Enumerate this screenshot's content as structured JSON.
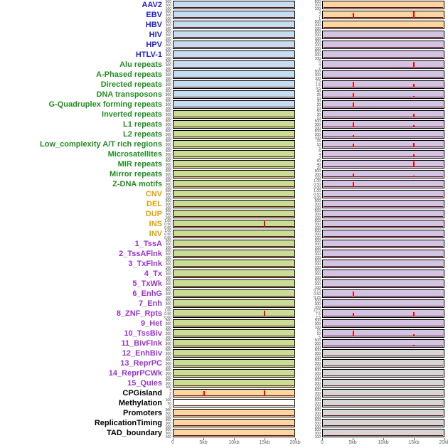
{
  "chart_data": {
    "type": "line",
    "description": "Two columns of per-feature genomic signal mini-tracks over a 0-20kb window; red vertical spikes mark signal peaks; flat dark baseline otherwise.",
    "columns": 2,
    "x_axis": {
      "ticks": [
        "0",
        "5kb",
        "10kb",
        "15kb",
        "20kb"
      ],
      "positions_kb": [
        0,
        5,
        10,
        15,
        20
      ],
      "domain_kb": [
        0,
        20
      ]
    },
    "default_yticks": [
      "500",
      "300",
      "100"
    ],
    "rows": [
      {
        "label": "AAV2",
        "group": "virus",
        "left": {
          "bg": "blue",
          "spikes": []
        },
        "right": {
          "bg": "orange",
          "spikes": []
        }
      },
      {
        "label": "EBV",
        "group": "virus",
        "left": {
          "bg": "blue",
          "spikes": []
        },
        "right": {
          "bg": "orange",
          "yticks": [
            "3",
            "2",
            "1"
          ],
          "spikes": [
            [
              5,
              0.7
            ],
            [
              15,
              0.9
            ]
          ]
        }
      },
      {
        "label": "HBV",
        "group": "virus",
        "left": {
          "bg": "blue",
          "spikes": []
        },
        "right": {
          "bg": "orange",
          "spikes": []
        }
      },
      {
        "label": "HIV",
        "group": "virus",
        "left": {
          "bg": "blue",
          "spikes": []
        },
        "right": {
          "bg": "purple",
          "spikes": []
        }
      },
      {
        "label": "HPV",
        "group": "virus",
        "left": {
          "bg": "blue",
          "spikes": []
        },
        "right": {
          "bg": "purple",
          "yticks": [
            "300",
            "200",
            "100"
          ],
          "spikes": []
        }
      },
      {
        "label": "HTLV-1",
        "group": "virus",
        "left": {
          "bg": "blue",
          "spikes": []
        },
        "right": {
          "bg": "purple",
          "spikes": []
        }
      },
      {
        "label": "Alu repeats",
        "group": "repeat",
        "left": {
          "bg": "blue",
          "spikes": []
        },
        "right": {
          "bg": "purple",
          "yticks": [
            "6",
            "4",
            "2"
          ],
          "spikes": [
            [
              15,
              0.8
            ]
          ]
        }
      },
      {
        "label": "A-Phased repeats",
        "group": "repeat",
        "left": {
          "bg": "blue",
          "spikes": []
        },
        "right": {
          "bg": "purple",
          "spikes": []
        }
      },
      {
        "label": "Directed repeats",
        "group": "repeat",
        "left": {
          "bg": "blue",
          "spikes": []
        },
        "right": {
          "bg": "purple",
          "yticks": [
            "2.5",
            "1.5",
            "0.5"
          ],
          "spikes": [
            [
              5,
              0.8
            ],
            [
              15,
              0.55
            ]
          ]
        }
      },
      {
        "label": "DNA transposons",
        "group": "repeat",
        "left": {
          "bg": "blue",
          "spikes": []
        },
        "right": {
          "bg": "purple",
          "yticks": [
            "40",
            "25",
            "10"
          ],
          "spikes": [
            [
              5,
              0.65
            ],
            [
              15,
              0.25
            ]
          ]
        }
      },
      {
        "label": "G-Quadruplex forming repeats",
        "group": "repeat",
        "left": {
          "bg": "blue",
          "spikes": []
        },
        "right": {
          "bg": "purple",
          "yticks": [
            "30",
            "20",
            "10"
          ],
          "spikes": [
            [
              5,
              0.7
            ]
          ]
        }
      },
      {
        "label": "Inverted repeats",
        "group": "repeat",
        "left": {
          "bg": "green",
          "spikes": []
        },
        "right": {
          "bg": "purple",
          "yticks": [
            "50",
            "30",
            "10"
          ],
          "spikes": [
            [
              15,
              0.5
            ]
          ]
        }
      },
      {
        "label": "L1 repeats",
        "group": "repeat",
        "left": {
          "bg": "green",
          "spikes": []
        },
        "right": {
          "bg": "purple",
          "spikes": [
            [
              5,
              0.75
            ],
            [
              15,
              0.3
            ]
          ]
        }
      },
      {
        "label": "L2 repeats",
        "group": "repeat",
        "left": {
          "bg": "green",
          "spikes": []
        },
        "right": {
          "bg": "purple",
          "spikes": [
            [
              5,
              0.35
            ]
          ]
        }
      },
      {
        "label": "Low_complexity A/T rich regions",
        "group": "repeat",
        "left": {
          "bg": "green",
          "spikes": []
        },
        "right": {
          "bg": "purple",
          "yticks": [
            "15",
            "10",
            "5"
          ],
          "spikes": [
            [
              5,
              0.5
            ],
            [
              15,
              0.65
            ]
          ]
        }
      },
      {
        "label": "Microsatellites",
        "group": "repeat",
        "left": {
          "bg": "green",
          "spikes": []
        },
        "right": {
          "bg": "purple",
          "yticks": [
            "6",
            "4",
            "2"
          ],
          "spikes": [
            [
              15,
              0.4
            ]
          ]
        }
      },
      {
        "label": "MIR repeats",
        "group": "repeat",
        "left": {
          "bg": "green",
          "spikes": []
        },
        "right": {
          "bg": "purple",
          "yticks": [
            "60",
            "40",
            "20"
          ],
          "spikes": [
            [
              15,
              0.85
            ]
          ]
        }
      },
      {
        "label": "Mirror repeats",
        "group": "repeat",
        "left": {
          "bg": "green",
          "spikes": []
        },
        "right": {
          "bg": "purple",
          "spikes": [
            [
              5,
              0.5
            ],
            [
              15,
              0.2
            ]
          ]
        }
      },
      {
        "label": "Z-DNA motifs",
        "group": "repeat",
        "left": {
          "bg": "green",
          "spikes": []
        },
        "right": {
          "bg": "purple",
          "yticks": [
            "1.00",
            "0.50",
            "0.00"
          ],
          "spikes": [
            [
              5,
              0.75
            ]
          ]
        }
      },
      {
        "label": "CNV",
        "group": "sv",
        "left": {
          "bg": "green",
          "spikes": []
        },
        "right": {
          "bg": "purple",
          "yticks": [
            "1.00",
            "0.50",
            "0.00"
          ],
          "spikes": []
        }
      },
      {
        "label": "DEL",
        "group": "sv",
        "left": {
          "bg": "green",
          "spikes": []
        },
        "right": {
          "bg": "purple",
          "spikes": []
        }
      },
      {
        "label": "DUP",
        "group": "sv",
        "left": {
          "bg": "green",
          "spikes": []
        },
        "right": {
          "bg": "purple",
          "spikes": []
        }
      },
      {
        "label": "INS",
        "group": "sv",
        "left": {
          "bg": "green",
          "yticks": [
            "1.00",
            "0.50",
            "0.00"
          ],
          "spikes": [
            [
              15,
              0.85
            ]
          ]
        },
        "right": {
          "bg": "purple",
          "spikes": []
        }
      },
      {
        "label": "INV",
        "group": "sv",
        "left": {
          "bg": "green",
          "yticks": [
            "1.00",
            "0.50",
            "0.00"
          ],
          "spikes": []
        },
        "right": {
          "bg": "purple",
          "spikes": []
        }
      },
      {
        "label": "1_TssA",
        "group": "chromatin",
        "left": {
          "bg": "green",
          "spikes": []
        },
        "right": {
          "bg": "purple",
          "spikes": []
        }
      },
      {
        "label": "2_TssAFlnk",
        "group": "chromatin",
        "left": {
          "bg": "green",
          "spikes": []
        },
        "right": {
          "bg": "purple",
          "spikes": []
        }
      },
      {
        "label": "3_TxFlnk",
        "group": "chromatin",
        "left": {
          "bg": "green",
          "spikes": []
        },
        "right": {
          "bg": "purple",
          "spikes": []
        }
      },
      {
        "label": "4_Tx",
        "group": "chromatin",
        "left": {
          "bg": "green",
          "spikes": []
        },
        "right": {
          "bg": "purple",
          "spikes": []
        }
      },
      {
        "label": "5_TxWk",
        "group": "chromatin",
        "left": {
          "bg": "green",
          "spikes": []
        },
        "right": {
          "bg": "purple",
          "spikes": []
        }
      },
      {
        "label": "6_EnhG",
        "group": "chromatin",
        "left": {
          "bg": "green",
          "spikes": []
        },
        "right": {
          "bg": "purple",
          "yticks": [
            "0.75",
            "0.50",
            "0.25"
          ],
          "spikes": [
            [
              5,
              0.7
            ]
          ]
        }
      },
      {
        "label": "7_Enh",
        "group": "chromatin",
        "left": {
          "bg": "green",
          "spikes": []
        },
        "right": {
          "bg": "purple",
          "spikes": []
        }
      },
      {
        "label": "8_ZNF_Rpts",
        "group": "chromatin",
        "left": {
          "bg": "green",
          "yticks": [
            "1.00",
            "0.50",
            "0.00"
          ],
          "spikes": [
            [
              15,
              0.8
            ]
          ]
        },
        "right": {
          "bg": "purple",
          "yticks": [
            "12.5",
            "7.5",
            "2.5"
          ],
          "spikes": [
            [
              5,
              0.55
            ],
            [
              15,
              0.65
            ]
          ]
        }
      },
      {
        "label": "9_Het",
        "group": "chromatin",
        "left": {
          "bg": "green",
          "spikes": []
        },
        "right": {
          "bg": "purple",
          "spikes": []
        }
      },
      {
        "label": "10_TssBiv",
        "group": "chromatin",
        "left": {
          "bg": "green",
          "spikes": []
        },
        "right": {
          "bg": "purple",
          "yticks": [
            "15",
            "10",
            "5"
          ],
          "spikes": [
            [
              5,
              0.8
            ],
            [
              15,
              0.3
            ]
          ]
        }
      },
      {
        "label": "11_BivFlnk",
        "group": "chromatin",
        "left": {
          "bg": "green",
          "spikes": []
        },
        "right": {
          "bg": "purple",
          "spikes": [
            [
              15,
              0.25
            ]
          ]
        }
      },
      {
        "label": "12_EnhBiv",
        "group": "chromatin",
        "left": {
          "bg": "green",
          "spikes": []
        },
        "right": {
          "bg": "gray",
          "spikes": []
        }
      },
      {
        "label": "13_ReprPC",
        "group": "chromatin",
        "left": {
          "bg": "green",
          "spikes": []
        },
        "right": {
          "bg": "gray",
          "spikes": []
        }
      },
      {
        "label": "14_ReprPCWk",
        "group": "chromatin",
        "left": {
          "bg": "green",
          "spikes": []
        },
        "right": {
          "bg": "gray",
          "spikes": []
        }
      },
      {
        "label": "15_Quies",
        "group": "chromatin",
        "left": {
          "bg": "green",
          "spikes": []
        },
        "right": {
          "bg": "gray",
          "spikes": []
        }
      },
      {
        "label": "CPGisland",
        "group": "annotation",
        "left": {
          "bg": "orange",
          "yticks": [
            "4",
            "2",
            "0"
          ],
          "spikes": [
            [
              5,
              0.75
            ],
            [
              15,
              0.85
            ]
          ]
        },
        "right": {
          "bg": "gray",
          "spikes": []
        }
      },
      {
        "label": "Methylation",
        "group": "annotation",
        "left": {
          "bg": "white",
          "yticks": [
            "100",
            "50",
            "0"
          ],
          "spikes": []
        },
        "right": {
          "bg": "gray",
          "spikes": []
        }
      },
      {
        "label": "Promoters",
        "group": "annotation",
        "left": {
          "bg": "orange",
          "spikes": []
        },
        "right": {
          "bg": "gray",
          "spikes": []
        }
      },
      {
        "label": "ReplicationTiming",
        "group": "annotation",
        "left": {
          "bg": "orange",
          "spikes": []
        },
        "right": {
          "bg": "gray",
          "spikes": []
        }
      },
      {
        "label": "TAD_boundary",
        "group": "annotation",
        "left": {
          "bg": "orange",
          "spikes": []
        },
        "right": {
          "bg": "gray",
          "spikes": []
        }
      }
    ]
  },
  "colors": {
    "label_groups": {
      "virus": "#2222cc",
      "repeat": "#228b22",
      "sv": "#e0a000",
      "chromatin": "#9932cc",
      "annotation": "#000000"
    },
    "track_bg": {
      "blue": "#c6dcef",
      "green": "#cbdc96",
      "orange": "#fcd6a2",
      "purple": "#d3c4e3",
      "gray": "#d6d6d6",
      "white": "#ffffff"
    },
    "spike": "#ff0000",
    "baseline": "#551111",
    "axis_text": "#666666",
    "ytick_text": "#444444"
  }
}
